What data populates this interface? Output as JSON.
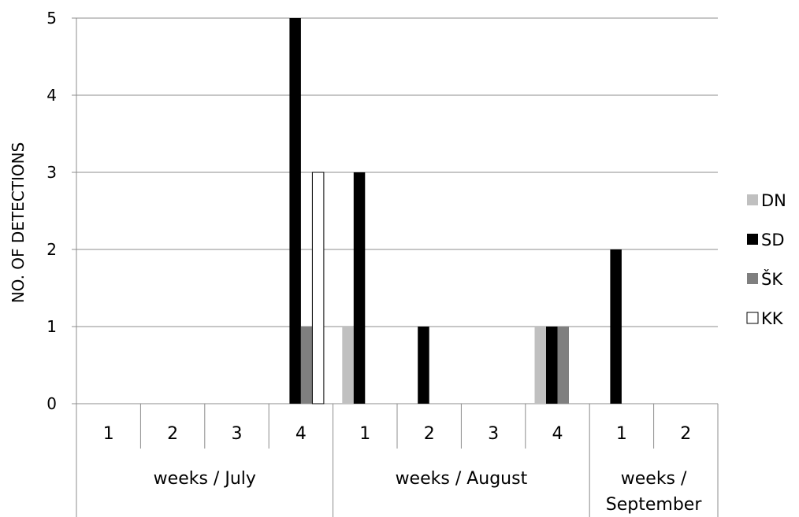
{
  "chart_data": {
    "type": "bar",
    "title": "",
    "ylabel": "NO. OF DETECTIONS",
    "ylim": [
      0,
      5
    ],
    "yticks": [
      "0",
      "1",
      "2",
      "3",
      "4",
      "5"
    ],
    "grid": true,
    "legend_position": "right",
    "groups": [
      {
        "label_lines": [
          "weeks / July"
        ],
        "weeks": [
          "1",
          "2",
          "3",
          "4"
        ]
      },
      {
        "label_lines": [
          "weeks / August"
        ],
        "weeks": [
          "1",
          "2",
          "3",
          "4"
        ]
      },
      {
        "label_lines": [
          "weeks /",
          "September"
        ],
        "weeks": [
          "1",
          "2"
        ]
      }
    ],
    "series": [
      {
        "name": "DN",
        "color": "#c0c0c0",
        "values": [
          0,
          0,
          0,
          0,
          1,
          0,
          0,
          1,
          0,
          0
        ]
      },
      {
        "name": "SD",
        "color": "#000000",
        "values": [
          0,
          0,
          0,
          5,
          3,
          1,
          0,
          1,
          2,
          0
        ]
      },
      {
        "name": "ŠK",
        "color": "#7f7f7f",
        "values": [
          0,
          0,
          0,
          1,
          0,
          0,
          0,
          1,
          0,
          0
        ]
      },
      {
        "name": "KK",
        "color": "#ffffff",
        "values": [
          0,
          0,
          0,
          3,
          0,
          0,
          0,
          0,
          0,
          0
        ]
      }
    ]
  }
}
